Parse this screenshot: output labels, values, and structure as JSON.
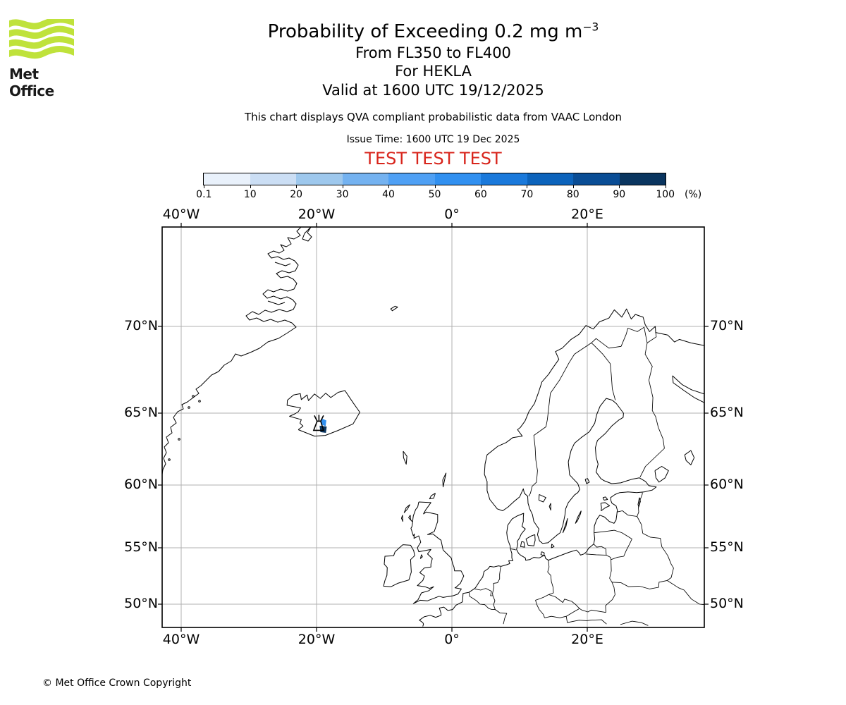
{
  "brand": {
    "logo_text": "Met Office"
  },
  "header": {
    "title": "Probability of Exceeding 0.2 mg m",
    "title_superscript": "−3",
    "subtitle_flight_levels": "From FL350 to FL400",
    "subtitle_volcano": "For HEKLA",
    "subtitle_valid": "Valid at 1600 UTC 19/12/2025",
    "disclaimer": "This chart displays QVA compliant probabilistic data from VAAC London",
    "issue_time": "Issue Time: 1600 UTC 19 Dec 2025",
    "test_banner": "TEST TEST TEST"
  },
  "colorbar": {
    "tick_labels": [
      "0.1",
      "10",
      "20",
      "30",
      "40",
      "50",
      "60",
      "70",
      "80",
      "90",
      "100"
    ],
    "unit_label": "(%)",
    "segment_colors": [
      "#E9F1FB",
      "#CBDEF4",
      "#9EC8ED",
      "#74B2F0",
      "#4FA0F4",
      "#3190F0",
      "#1A79DB",
      "#0C63BB",
      "#0A4D95",
      "#0A355F"
    ]
  },
  "map": {
    "lon_labels": [
      {
        "text": "40°W",
        "lon": -40
      },
      {
        "text": "20°W",
        "lon": -20
      },
      {
        "text": "0°",
        "lon": 0
      },
      {
        "text": "20°E",
        "lon": 20
      }
    ],
    "lat_labels": [
      {
        "text": "70°N",
        "lat": 70
      },
      {
        "text": "65°N",
        "lat": 65
      },
      {
        "text": "60°N",
        "lat": 60
      },
      {
        "text": "55°N",
        "lat": 55
      },
      {
        "text": "50°N",
        "lat": 50
      }
    ]
  },
  "footer": {
    "copyright": "© Met Office Crown Copyright"
  },
  "colors": {
    "logo_green": "#BFE23B",
    "test_red": "#D8251C",
    "grid_gray": "#B0B0B0",
    "coast_black": "#000000",
    "contour_mid_blue": "#3190F0",
    "contour_dark_blue": "#0A355F"
  },
  "chart_data": {
    "type": "map",
    "title": "Probability of Exceeding 0.2 mg m−3",
    "subtitles": [
      "From FL350 to FL400",
      "For HEKLA",
      "Valid at 1600 UTC 19/12/2025"
    ],
    "legend": "probability of exceedance (%), 10 blue shades light to dark",
    "colorbar_levels_percent": [
      0.1,
      10,
      20,
      30,
      40,
      50,
      60,
      70,
      80,
      90,
      100
    ],
    "map_extent": {
      "lon_min": -42.8,
      "lon_max": 37.3,
      "lat_min": 47.6,
      "lat_max": 75.4
    },
    "gridline_lons": [
      -40,
      -20,
      0,
      20
    ],
    "gridline_lats": [
      70,
      65,
      60,
      55,
      50
    ],
    "volcano": {
      "name": "HEKLA",
      "lat": 64.0,
      "lon": -19.7
    },
    "probability_region": {
      "description": "single small multi-shade contour patch immediately east of the Hekla volcano marker, SW Iceland",
      "approx_lat": 64.0,
      "approx_lon": -19.4
    }
  }
}
